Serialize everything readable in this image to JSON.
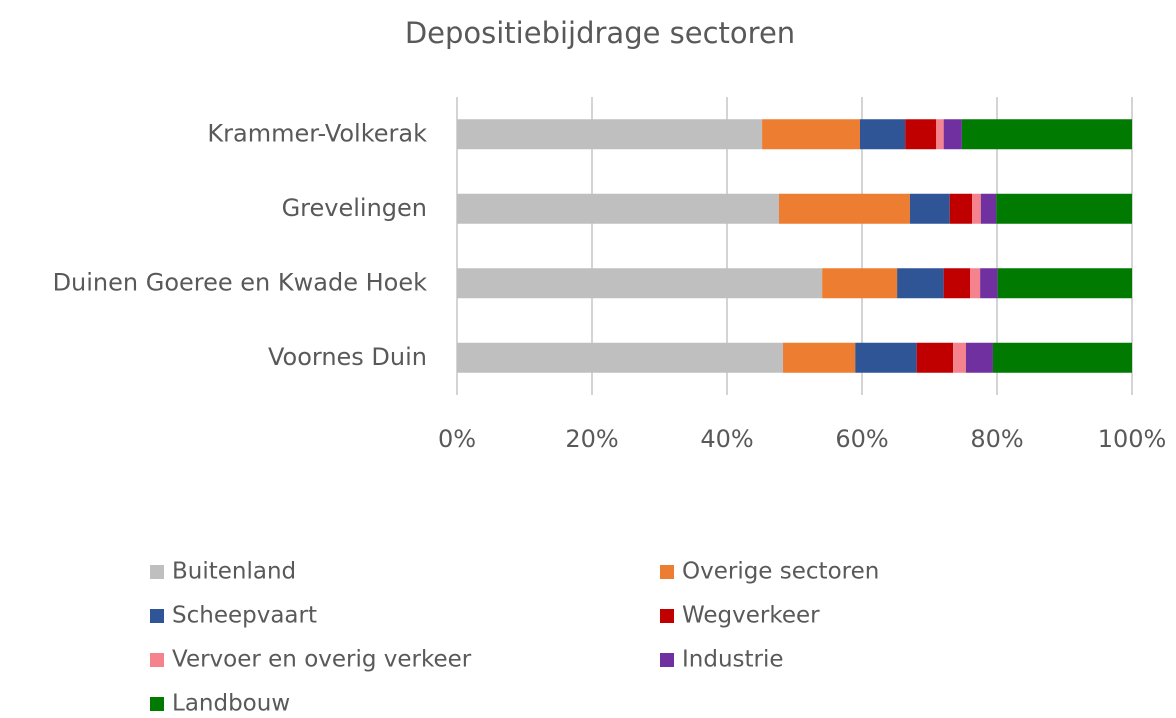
{
  "chart_data": {
    "type": "stacked_bar_horizontal",
    "title": "Depositiebijdrage sectoren",
    "categories": [
      "Krammer-Volkerak",
      "Grevelingen",
      "Duinen Goeree en Kwade Hoek",
      "Voornes Duin"
    ],
    "series": [
      {
        "name": "Buitenland",
        "color": "#bfbfbf",
        "values": [
          45.2,
          47.7,
          54.1,
          48.3
        ]
      },
      {
        "name": "Overige sectoren",
        "color": "#ed7d31",
        "values": [
          14.5,
          19.4,
          11.1,
          10.7
        ]
      },
      {
        "name": "Scheepvaart",
        "color": "#2f5597",
        "values": [
          6.7,
          5.9,
          6.9,
          9.1
        ]
      },
      {
        "name": "Wegverkeer",
        "color": "#c00000",
        "values": [
          4.6,
          3.3,
          3.9,
          5.4
        ]
      },
      {
        "name": "Vervoer en overig verkeer",
        "color": "#f4838d",
        "values": [
          1.1,
          1.3,
          1.5,
          1.9
        ]
      },
      {
        "name": "Industrie",
        "color": "#7030a0",
        "values": [
          2.7,
          2.3,
          2.6,
          4.0
        ]
      },
      {
        "name": "Landbouw",
        "color": "#007a00",
        "values": [
          25.2,
          20.1,
          19.9,
          20.6
        ]
      }
    ],
    "xlim": [
      0,
      100
    ],
    "xticks": [
      {
        "value": 0,
        "label": "0%"
      },
      {
        "value": 20,
        "label": "20%"
      },
      {
        "value": 40,
        "label": "40%"
      },
      {
        "value": 60,
        "label": "60%"
      },
      {
        "value": 80,
        "label": "80%"
      },
      {
        "value": 100,
        "label": "100%"
      }
    ],
    "grid": true
  }
}
